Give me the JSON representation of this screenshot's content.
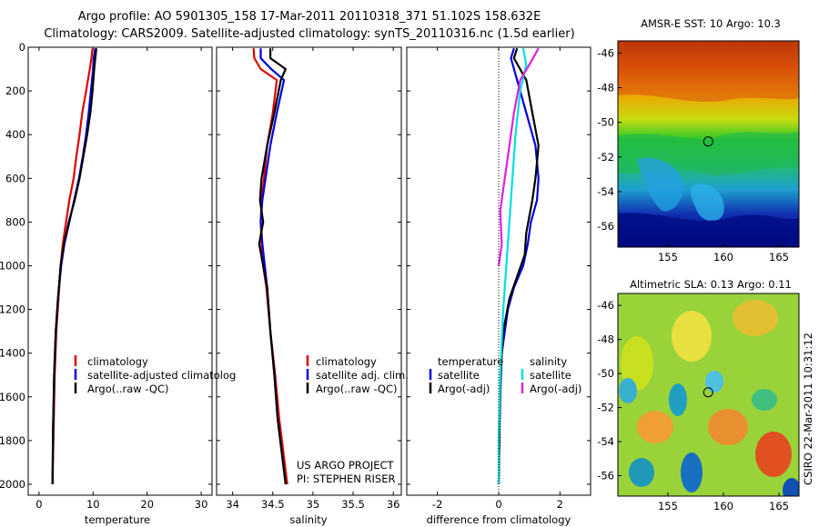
{
  "header": {
    "line1": "Argo profile: AO 5901305_158 17-Mar-2011 20110318_371 51.102S 158.632E",
    "line2": "Climatology: CARS2009. Satellite-adjusted climatology: synTS_20110316.nc (1.5d earlier)"
  },
  "credit": "CSIRO 22-Mar-2011 10:31:12",
  "project": {
    "line1": "US ARGO PROJECT",
    "line2": "PI: STEPHEN RISER"
  },
  "colors": {
    "climatology": "#e00000",
    "satellite": "#0000dd",
    "argo": "#000000",
    "argo_raw": "#000000",
    "sal_sat": "#00e0e0",
    "sal_argo": "#e020e0"
  },
  "chart_data": [
    {
      "type": "line",
      "id": "temperature",
      "xlabel": "temperature",
      "ylabel": "",
      "xlim": [
        -2,
        32
      ],
      "ylim": [
        2050,
        0
      ],
      "xticks": [
        0,
        10,
        20,
        30
      ],
      "yticks": [
        0,
        200,
        400,
        600,
        800,
        1000,
        1200,
        1400,
        1600,
        1800,
        2000
      ],
      "legend": {
        "position": "bottom-right",
        "entries": [
          "climatology",
          "satellite-adjusted climatolog",
          "Argo(..raw -QC)"
        ]
      },
      "series": [
        {
          "name": "climatology",
          "color": "#e00000",
          "x": [
            9.9,
            9.7,
            9.4,
            8.7,
            8.0,
            7.5,
            6.9,
            6.4,
            5.6,
            5.0,
            4.4,
            4.0,
            3.6,
            3.2,
            2.9,
            2.7,
            2.5
          ],
          "y": [
            5,
            50,
            100,
            200,
            300,
            400,
            500,
            600,
            700,
            800,
            900,
            1000,
            1150,
            1300,
            1500,
            1750,
            2000
          ]
        },
        {
          "name": "satellite-adjusted climatolog",
          "color": "#0000dd",
          "x": [
            10.4,
            10.1,
            10.0,
            9.6,
            9.2,
            8.7,
            8.1,
            7.4,
            6.5,
            5.6,
            4.7,
            4.1,
            3.5,
            3.1,
            2.8,
            2.6,
            2.5
          ],
          "y": [
            5,
            50,
            100,
            200,
            300,
            400,
            500,
            600,
            700,
            800,
            900,
            1000,
            1150,
            1300,
            1500,
            1750,
            2000
          ]
        },
        {
          "name": "Argo(..raw -QC)",
          "color": "#000000",
          "x": [
            10.6,
            10.4,
            10.2,
            9.9,
            9.5,
            8.9,
            8.2,
            7.5,
            6.6,
            5.5,
            4.6,
            4.0,
            3.5,
            3.1,
            2.8,
            2.6,
            2.5
          ],
          "y": [
            5,
            50,
            100,
            200,
            300,
            400,
            500,
            600,
            700,
            800,
            900,
            1000,
            1150,
            1300,
            1500,
            1750,
            2000
          ]
        }
      ]
    },
    {
      "type": "line",
      "id": "salinity",
      "xlabel": "salinity",
      "ylabel": "",
      "xlim": [
        33.8,
        36.1
      ],
      "ylim": [
        2050,
        0
      ],
      "xticks": [
        34,
        34.5,
        35,
        35.5,
        36
      ],
      "legend": {
        "position": "bottom-right",
        "entries": [
          "climatology",
          "satellite adj. clim.",
          "Argo(..raw -QC)"
        ]
      },
      "series": [
        {
          "name": "climatology",
          "color": "#e00000",
          "x": [
            34.26,
            34.27,
            34.35,
            34.55,
            34.5,
            34.43,
            34.39,
            34.36,
            34.35,
            34.36,
            34.38,
            34.42,
            34.47,
            34.53,
            34.58,
            34.63,
            34.68
          ],
          "y": [
            5,
            50,
            100,
            150,
            300,
            450,
            600,
            700,
            800,
            900,
            1000,
            1100,
            1300,
            1500,
            1700,
            1850,
            2000
          ]
        },
        {
          "name": "satellite adj. clim.",
          "color": "#0000dd",
          "x": [
            34.35,
            34.35,
            34.48,
            34.64,
            34.55,
            34.47,
            34.41,
            34.37,
            34.35,
            34.37,
            34.4,
            34.43,
            34.47,
            34.52,
            34.56,
            34.61,
            34.66
          ],
          "y": [
            5,
            50,
            100,
            150,
            300,
            450,
            600,
            700,
            800,
            900,
            1000,
            1100,
            1300,
            1500,
            1700,
            1850,
            2000
          ]
        },
        {
          "name": "Argo(..raw -QC)",
          "color": "#000000",
          "x": [
            34.47,
            34.47,
            34.66,
            34.6,
            34.52,
            34.43,
            34.36,
            34.34,
            34.38,
            34.33,
            34.38,
            34.43,
            34.47,
            34.52,
            34.56,
            34.61,
            34.66
          ],
          "y": [
            5,
            50,
            100,
            150,
            300,
            450,
            600,
            700,
            800,
            900,
            1000,
            1100,
            1300,
            1500,
            1700,
            1850,
            2000
          ]
        }
      ]
    },
    {
      "type": "line",
      "id": "difference",
      "xlabel": "difference from climatology",
      "ylabel": "",
      "xlim": [
        -3,
        3
      ],
      "ylim": [
        2050,
        0
      ],
      "xticks": [
        -2,
        0,
        2
      ],
      "legend": {
        "position": "middle",
        "entries": [
          "temperature",
          "satellite",
          "Argo(-adj)",
          "salinity",
          "satellite",
          "Argo(-adj)"
        ]
      },
      "series": [
        {
          "name": "satellite",
          "group": "temperature",
          "color": "#0000dd",
          "x": [
            0.5,
            0.4,
            0.6,
            0.9,
            1.2,
            1.3,
            1.25,
            1.05,
            0.95,
            0.8,
            0.5,
            0.3,
            0.1,
            0.05,
            0.02,
            0.0
          ],
          "y": [
            5,
            50,
            150,
            300,
            450,
            600,
            700,
            800,
            900,
            1000,
            1100,
            1200,
            1400,
            1600,
            1800,
            2000
          ]
        },
        {
          "name": "Argo(-adj)",
          "group": "temperature",
          "color": "#000000",
          "x": [
            0.6,
            0.5,
            0.9,
            1.1,
            1.3,
            1.2,
            1.1,
            0.9,
            0.85,
            0.6,
            0.35,
            0.15,
            0.06,
            0.03,
            0.0
          ],
          "y": [
            5,
            50,
            150,
            300,
            450,
            600,
            700,
            850,
            950,
            1050,
            1150,
            1300,
            1500,
            1700,
            2000
          ]
        },
        {
          "name": "satellite",
          "group": "salinity",
          "color": "#00e0e0",
          "x": [
            0.8,
            0.9,
            0.7,
            0.55,
            0.45,
            0.35,
            0.25,
            0.15,
            0.05,
            0.0,
            0.0
          ],
          "y": [
            5,
            80,
            200,
            400,
            600,
            800,
            1000,
            1200,
            1500,
            1800,
            2000
          ]
        },
        {
          "name": "Argo(-adj)",
          "group": "salinity",
          "color": "#e020e0",
          "x": [
            1.3,
            1.0,
            0.7,
            0.5,
            0.3,
            0.15,
            0.05,
            0.1,
            0.0
          ],
          "y": [
            5,
            80,
            150,
            300,
            500,
            650,
            750,
            900,
            1000
          ]
        }
      ]
    },
    {
      "type": "heatmap",
      "id": "sst-map",
      "title": "AMSR-E SST: 10 Argo: 10.3",
      "xlim": [
        150.5,
        166.8
      ],
      "ylim": [
        -57.2,
        -45.3
      ],
      "xticks": [
        155,
        160,
        165
      ],
      "yticks": [
        -46,
        -48,
        -50,
        -52,
        -54,
        -56
      ],
      "marker": {
        "lon": 158.632,
        "lat": -51.102
      }
    },
    {
      "type": "heatmap",
      "id": "sla-map",
      "title": "Altimetric SLA: 0.13 Argo: 0.11",
      "xlim": [
        150.5,
        166.8
      ],
      "ylim": [
        -57.2,
        -45.3
      ],
      "xticks": [
        155,
        160,
        165
      ],
      "yticks": [
        -46,
        -48,
        -50,
        -52,
        -54,
        -56
      ],
      "marker": {
        "lon": 158.632,
        "lat": -51.102
      }
    }
  ]
}
